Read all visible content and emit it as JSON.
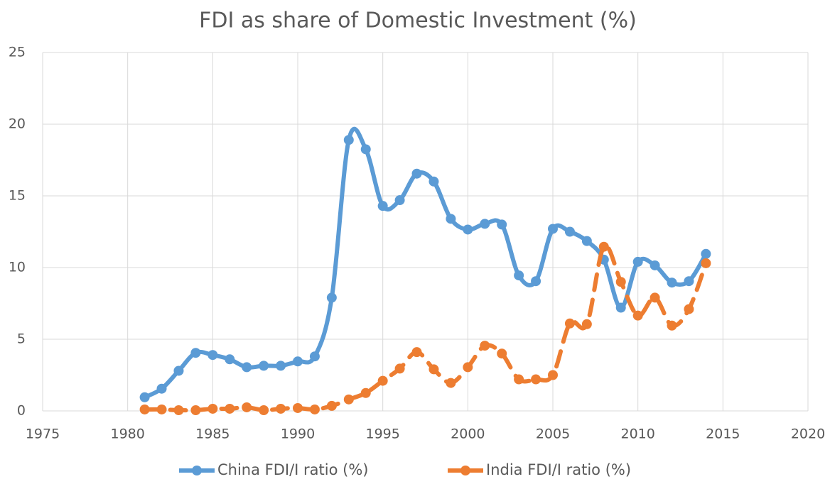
{
  "chart_data": {
    "type": "line",
    "title": "FDI as share of Domestic Investment (%)",
    "x": [
      1981,
      1982,
      1983,
      1984,
      1985,
      1986,
      1987,
      1988,
      1989,
      1990,
      1991,
      1992,
      1993,
      1994,
      1995,
      1996,
      1997,
      1998,
      1999,
      2000,
      2001,
      2002,
      2003,
      2004,
      2005,
      2006,
      2007,
      2008,
      2009,
      2010,
      2011,
      2012,
      2013,
      2014
    ],
    "series": [
      {
        "name": "China FDI/I ratio (%)",
        "color": "#5b9bd5",
        "line_style": "solid",
        "values": [
          0.95,
          1.55,
          2.8,
          4.05,
          3.9,
          3.6,
          3.05,
          3.15,
          3.15,
          3.45,
          3.8,
          7.9,
          18.9,
          18.25,
          14.3,
          14.7,
          16.55,
          16.0,
          13.4,
          12.65,
          13.05,
          13.0,
          9.45,
          9.05,
          12.7,
          12.5,
          11.85,
          10.55,
          7.2,
          10.4,
          10.15,
          8.95,
          9.05,
          10.95
        ]
      },
      {
        "name": "India FDI/I ratio (%)",
        "color": "#ed7d31",
        "line_style": "dashed",
        "values": [
          0.1,
          0.1,
          0.05,
          0.05,
          0.15,
          0.15,
          0.25,
          0.05,
          0.15,
          0.2,
          0.1,
          0.35,
          0.8,
          1.25,
          2.1,
          2.95,
          4.1,
          2.9,
          1.95,
          3.05,
          4.55,
          4.0,
          2.2,
          2.2,
          2.5,
          6.1,
          6.05,
          11.45,
          9.0,
          6.65,
          7.9,
          5.95,
          7.1,
          10.3
        ]
      }
    ],
    "xlim": [
      1975,
      2020
    ],
    "xticks": [
      1975,
      1980,
      1985,
      1990,
      1995,
      2000,
      2005,
      2010,
      2015,
      2020
    ],
    "ylim": [
      0,
      25
    ],
    "yticks": [
      0,
      5,
      10,
      15,
      20,
      25
    ],
    "grid": true,
    "smooth": true,
    "markers": true,
    "legend": "bottom"
  }
}
